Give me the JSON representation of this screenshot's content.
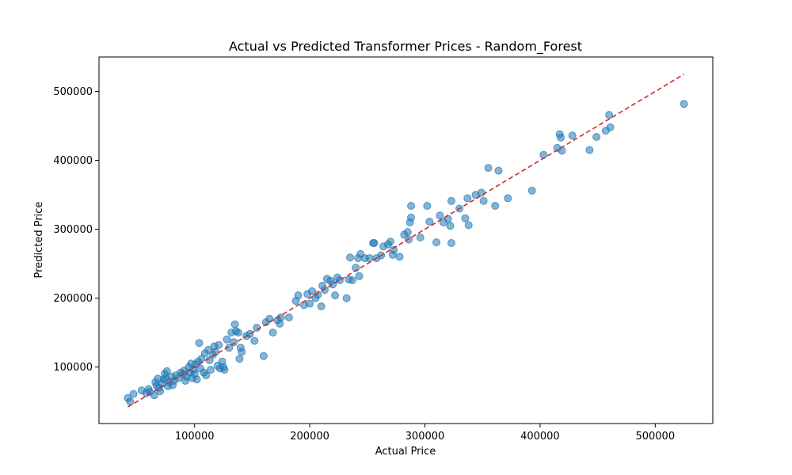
{
  "chart_data": {
    "type": "scatter",
    "title": "Actual vs Predicted Transformer Prices - Random_Forest",
    "xlabel": "Actual Price",
    "ylabel": "Predicted Price",
    "xlim": [
      17000,
      550000
    ],
    "ylim": [
      18000,
      550000
    ],
    "xticks": [
      100000,
      200000,
      300000,
      400000,
      500000
    ],
    "yticks": [
      100000,
      200000,
      300000,
      400000,
      500000
    ],
    "grid": false,
    "legend": "none",
    "series": [
      {
        "color": "#1f77b4",
        "opacity": 0.55,
        "points": [
          [
            42000,
            55000
          ],
          [
            44000,
            50000
          ],
          [
            47000,
            61000
          ],
          [
            54000,
            66000
          ],
          [
            58000,
            62000
          ],
          [
            60000,
            68000
          ],
          [
            61000,
            64000
          ],
          [
            65000,
            59000
          ],
          [
            66000,
            78000
          ],
          [
            67000,
            73000
          ],
          [
            68000,
            83000
          ],
          [
            69000,
            70000
          ],
          [
            70000,
            65000
          ],
          [
            72000,
            76000
          ],
          [
            73000,
            82000
          ],
          [
            74000,
            90000
          ],
          [
            75000,
            84000
          ],
          [
            76000,
            94000
          ],
          [
            77000,
            72000
          ],
          [
            78000,
            78000
          ],
          [
            80000,
            86000
          ],
          [
            81000,
            74000
          ],
          [
            82000,
            80000
          ],
          [
            84000,
            88000
          ],
          [
            86000,
            84000
          ],
          [
            88000,
            92000
          ],
          [
            90000,
            90000
          ],
          [
            91000,
            95000
          ],
          [
            92000,
            80000
          ],
          [
            93000,
            86000
          ],
          [
            95000,
            100000
          ],
          [
            96000,
            92000
          ],
          [
            97000,
            105000
          ],
          [
            98000,
            84000
          ],
          [
            99000,
            96000
          ],
          [
            100000,
            90000
          ],
          [
            101000,
            104000
          ],
          [
            102000,
            82000
          ],
          [
            103000,
            108000
          ],
          [
            104000,
            135000
          ],
          [
            105000,
            98000
          ],
          [
            106000,
            112000
          ],
          [
            108000,
            92000
          ],
          [
            109000,
            120000
          ],
          [
            110000,
            88000
          ],
          [
            112000,
            125000
          ],
          [
            113000,
            110000
          ],
          [
            114000,
            96000
          ],
          [
            116000,
            118000
          ],
          [
            117000,
            130000
          ],
          [
            118000,
            122000
          ],
          [
            120000,
            102000
          ],
          [
            121000,
            132000
          ],
          [
            122000,
            98000
          ],
          [
            124000,
            108000
          ],
          [
            125000,
            100000
          ],
          [
            126000,
            96000
          ],
          [
            128000,
            140000
          ],
          [
            130000,
            128000
          ],
          [
            132000,
            150000
          ],
          [
            134000,
            136000
          ],
          [
            135000,
            162000
          ],
          [
            136000,
            152000
          ],
          [
            138000,
            150000
          ],
          [
            139000,
            112000
          ],
          [
            140000,
            128000
          ],
          [
            141000,
            122000
          ],
          [
            145000,
            145000
          ],
          [
            148000,
            148000
          ],
          [
            152000,
            138000
          ],
          [
            154000,
            157000
          ],
          [
            160000,
            116000
          ],
          [
            162000,
            165000
          ],
          [
            165000,
            170000
          ],
          [
            168000,
            150000
          ],
          [
            172000,
            168000
          ],
          [
            174000,
            163000
          ],
          [
            175000,
            172000
          ],
          [
            182000,
            172000
          ],
          [
            188000,
            196000
          ],
          [
            190000,
            204000
          ],
          [
            195000,
            190000
          ],
          [
            198000,
            206000
          ],
          [
            200000,
            192000
          ],
          [
            202000,
            210000
          ],
          [
            205000,
            200000
          ],
          [
            207000,
            205000
          ],
          [
            210000,
            188000
          ],
          [
            211000,
            218000
          ],
          [
            213000,
            212000
          ],
          [
            215000,
            228000
          ],
          [
            218000,
            225000
          ],
          [
            220000,
            220000
          ],
          [
            222000,
            204000
          ],
          [
            224000,
            230000
          ],
          [
            226000,
            226000
          ],
          [
            232000,
            200000
          ],
          [
            234000,
            227000
          ],
          [
            235000,
            259000
          ],
          [
            237000,
            226000
          ],
          [
            240000,
            244000
          ],
          [
            242000,
            258000
          ],
          [
            243000,
            232000
          ],
          [
            244000,
            264000
          ],
          [
            248000,
            258000
          ],
          [
            252000,
            258000
          ],
          [
            255000,
            280000
          ],
          [
            256000,
            280000
          ],
          [
            258000,
            258000
          ],
          [
            262000,
            262000
          ],
          [
            264000,
            275000
          ],
          [
            268000,
            278000
          ],
          [
            270000,
            282000
          ],
          [
            272000,
            263000
          ],
          [
            273000,
            270000
          ],
          [
            278000,
            260000
          ],
          [
            282000,
            292000
          ],
          [
            285000,
            296000
          ],
          [
            286000,
            285000
          ],
          [
            287000,
            310000
          ],
          [
            288000,
            334000
          ],
          [
            288000,
            317000
          ],
          [
            296000,
            288000
          ],
          [
            302000,
            334000
          ],
          [
            304000,
            311000
          ],
          [
            310000,
            281000
          ],
          [
            313000,
            320000
          ],
          [
            316000,
            310000
          ],
          [
            320000,
            315000
          ],
          [
            322000,
            305000
          ],
          [
            323000,
            341000
          ],
          [
            323000,
            280000
          ],
          [
            330000,
            330000
          ],
          [
            335000,
            316000
          ],
          [
            337000,
            345000
          ],
          [
            338000,
            306000
          ],
          [
            344000,
            350000
          ],
          [
            349000,
            353000
          ],
          [
            351000,
            341000
          ],
          [
            355000,
            389000
          ],
          [
            361000,
            334000
          ],
          [
            364000,
            385000
          ],
          [
            372000,
            345000
          ],
          [
            393000,
            356000
          ],
          [
            403000,
            408000
          ],
          [
            415000,
            418000
          ],
          [
            417000,
            438000
          ],
          [
            418000,
            433000
          ],
          [
            419000,
            414000
          ],
          [
            428000,
            436000
          ],
          [
            443000,
            415000
          ],
          [
            449000,
            434000
          ],
          [
            457000,
            443000
          ],
          [
            460000,
            466000
          ],
          [
            461000,
            448000
          ],
          [
            525000,
            482000
          ]
        ]
      }
    ],
    "reference_line": {
      "from": [
        42000,
        42000
      ],
      "to": [
        525000,
        525000
      ],
      "color": "#d62728",
      "style": "dashed"
    }
  }
}
